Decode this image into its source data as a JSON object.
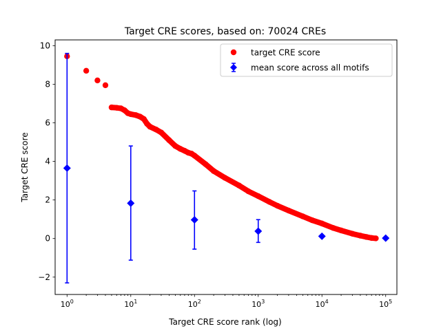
{
  "chart_data": {
    "type": "scatter",
    "title": "Target CRE scores, based on: 70024 CREs",
    "xlabel": "Target CRE score rank (log)",
    "ylabel": "Target CRE score",
    "xscale": "log",
    "xlim": [
      0.65,
      150000
    ],
    "ylim": [
      -2.9,
      10.3
    ],
    "x_ticks": [
      {
        "value": 1,
        "base": "10",
        "exp": "0"
      },
      {
        "value": 10,
        "base": "10",
        "exp": "1"
      },
      {
        "value": 100,
        "base": "10",
        "exp": "2"
      },
      {
        "value": 1000,
        "base": "10",
        "exp": "3"
      },
      {
        "value": 10000,
        "base": "10",
        "exp": "4"
      },
      {
        "value": 100000,
        "base": "10",
        "exp": "5"
      }
    ],
    "y_ticks": [
      {
        "value": -2,
        "label": "−2"
      },
      {
        "value": 0,
        "label": "0"
      },
      {
        "value": 2,
        "label": "2"
      },
      {
        "value": 4,
        "label": "4"
      },
      {
        "value": 6,
        "label": "6"
      },
      {
        "value": 8,
        "label": "8"
      },
      {
        "value": 10,
        "label": "10"
      }
    ],
    "legend_position": "top-right",
    "grid": false,
    "series": [
      {
        "name": "target CRE score",
        "kind": "scatter",
        "color": "#ff0000",
        "marker": "circle",
        "x": [
          1,
          2,
          3,
          4,
          5,
          6,
          7,
          8,
          9,
          10,
          12,
          14,
          16,
          18,
          20,
          25,
          30,
          40,
          50,
          60,
          70,
          80,
          90,
          100,
          150,
          200,
          300,
          500,
          700,
          1000,
          1500,
          2000,
          3000,
          5000,
          7000,
          10000,
          15000,
          20000,
          30000,
          40000,
          50000,
          60000,
          70024
        ],
        "y": [
          9.45,
          8.7,
          8.2,
          7.95,
          6.8,
          6.78,
          6.75,
          6.65,
          6.5,
          6.45,
          6.4,
          6.32,
          6.2,
          5.95,
          5.8,
          5.65,
          5.5,
          5.1,
          4.8,
          4.65,
          4.55,
          4.45,
          4.4,
          4.3,
          3.85,
          3.5,
          3.15,
          2.75,
          2.45,
          2.2,
          1.9,
          1.7,
          1.45,
          1.15,
          0.95,
          0.78,
          0.55,
          0.42,
          0.25,
          0.15,
          0.08,
          0.03,
          0.01
        ]
      },
      {
        "name": "mean score across all motifs",
        "kind": "errorbar",
        "color": "#0000ff",
        "marker": "diamond",
        "x": [
          1,
          10,
          100,
          1000,
          10000,
          100000
        ],
        "y": [
          3.65,
          1.83,
          0.97,
          0.38,
          0.12,
          0.02
        ],
        "err_low": [
          5.95,
          2.95,
          1.52,
          0.58,
          0.04,
          0.0
        ],
        "err_high": [
          5.95,
          2.97,
          1.5,
          0.6,
          0.04,
          0.0
        ]
      }
    ]
  }
}
